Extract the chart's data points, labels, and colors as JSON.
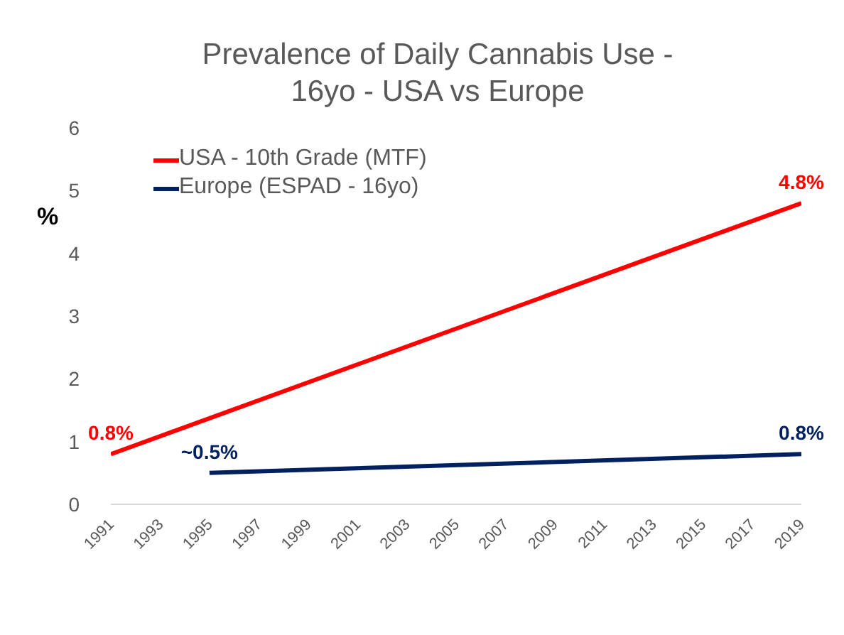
{
  "chart_data": {
    "type": "line",
    "title": "Prevalence of Daily Cannabis Use - 16yo - USA vs Europe",
    "ylabel": "%",
    "xlim": [
      1991,
      2019
    ],
    "xticks": [
      1991,
      1993,
      1995,
      1997,
      1999,
      2001,
      2003,
      2005,
      2007,
      2009,
      2011,
      2013,
      2015,
      2017,
      2019
    ],
    "ylim": [
      0,
      6
    ],
    "yticks": [
      0,
      1,
      2,
      3,
      4,
      5,
      6
    ],
    "grid": false,
    "legend": "top left",
    "marker": "none",
    "line_style": "solid",
    "series": [
      {
        "name": "USA - 10th Grade (MTF)",
        "color": "#ff0000",
        "x": [
          1991,
          2019
        ],
        "values": [
          0.8,
          4.8
        ],
        "value_labels": [
          "0.8%",
          "4.8%"
        ]
      },
      {
        "name": "Europe (ESPAD - 16yo)",
        "color": "#002060",
        "x": [
          1995,
          2019
        ],
        "values": [
          0.5,
          0.8
        ],
        "value_labels": [
          "~0.5%",
          "0.8%"
        ]
      }
    ]
  }
}
